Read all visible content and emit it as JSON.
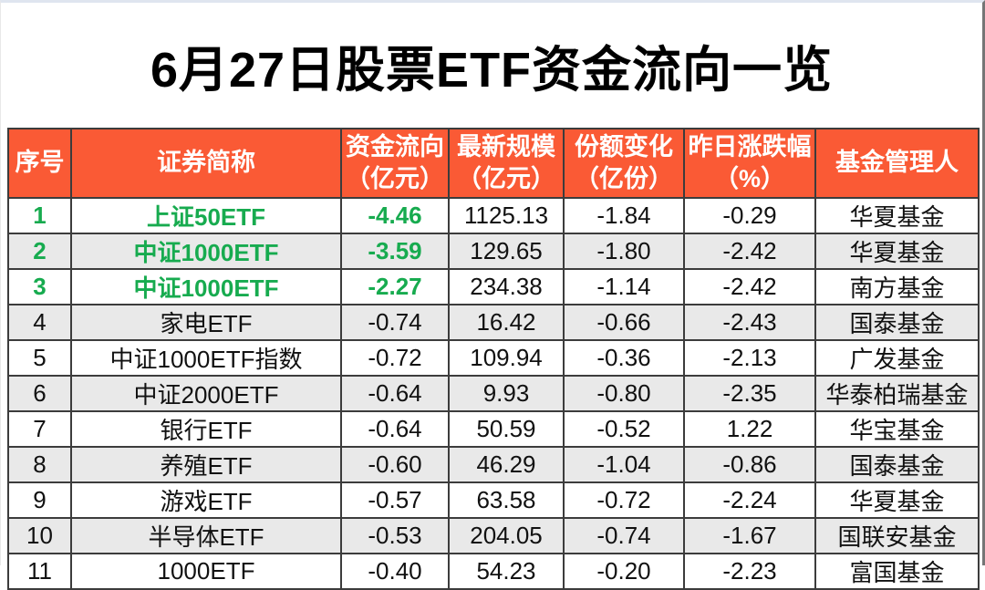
{
  "title": "6月27日股票ETF资金流向一览",
  "colors": {
    "header_bg": "#FA5A35",
    "header_text": "#FFFFFF",
    "highlight_green": "#17AB4F",
    "row_alt_bg": "#E9E9E9",
    "border": "#3C3C3C",
    "text": "#111111"
  },
  "table": {
    "columns": [
      {
        "id": "index",
        "label": "序号"
      },
      {
        "id": "name",
        "label": "证券简称"
      },
      {
        "id": "flow",
        "label": "资金流向\n（亿元）"
      },
      {
        "id": "scale",
        "label": "最新规模\n（亿元）"
      },
      {
        "id": "share-change",
        "label": "份额变化\n（亿份）"
      },
      {
        "id": "pct-change",
        "label": "昨日涨跌幅\n（%）"
      },
      {
        "id": "manager",
        "label": "基金管理人"
      }
    ],
    "green_row_count": 3,
    "green_col_count": 3,
    "rows": [
      {
        "cells": [
          "1",
          "上证50ETF",
          "-4.46",
          "1125.13",
          "-1.84",
          "-0.29",
          "华夏基金"
        ]
      },
      {
        "cells": [
          "2",
          "中证1000ETF",
          "-3.59",
          "129.65",
          "-1.80",
          "-2.42",
          "华夏基金"
        ]
      },
      {
        "cells": [
          "3",
          "中证1000ETF",
          "-2.27",
          "234.38",
          "-1.14",
          "-2.42",
          "南方基金"
        ]
      },
      {
        "cells": [
          "4",
          "家电ETF",
          "-0.74",
          "16.42",
          "-0.66",
          "-2.43",
          "国泰基金"
        ]
      },
      {
        "cells": [
          "5",
          "中证1000ETF指数",
          "-0.72",
          "109.94",
          "-0.36",
          "-2.13",
          "广发基金"
        ]
      },
      {
        "cells": [
          "6",
          "中证2000ETF",
          "-0.64",
          "9.93",
          "-0.80",
          "-2.35",
          "华泰柏瑞基金"
        ]
      },
      {
        "cells": [
          "7",
          "银行ETF",
          "-0.64",
          "50.59",
          "-0.52",
          "1.22",
          "华宝基金"
        ]
      },
      {
        "cells": [
          "8",
          "养殖ETF",
          "-0.60",
          "46.29",
          "-1.04",
          "-0.86",
          "国泰基金"
        ]
      },
      {
        "cells": [
          "9",
          "游戏ETF",
          "-0.57",
          "63.58",
          "-0.72",
          "-2.24",
          "华夏基金"
        ]
      },
      {
        "cells": [
          "10",
          "半导体ETF",
          "-0.53",
          "204.05",
          "-0.74",
          "-1.67",
          "国联安基金"
        ]
      },
      {
        "cells": [
          "11",
          "1000ETF",
          "-0.40",
          "54.23",
          "-0.20",
          "-2.23",
          "富国基金"
        ]
      }
    ]
  },
  "chart_data": {
    "type": "table",
    "title": "6月27日股票ETF资金流向一览",
    "columns": [
      "序号",
      "证券简称",
      "资金流向(亿元)",
      "最新规模(亿元)",
      "份额变化(亿份)",
      "昨日涨跌幅(%)",
      "基金管理人"
    ],
    "rows": [
      [
        1,
        "上证50ETF",
        -4.46,
        1125.13,
        -1.84,
        -0.29,
        "华夏基金"
      ],
      [
        2,
        "中证1000ETF",
        -3.59,
        129.65,
        -1.8,
        -2.42,
        "华夏基金"
      ],
      [
        3,
        "中证1000ETF",
        -2.27,
        234.38,
        -1.14,
        -2.42,
        "南方基金"
      ],
      [
        4,
        "家电ETF",
        -0.74,
        16.42,
        -0.66,
        -2.43,
        "国泰基金"
      ],
      [
        5,
        "中证1000ETF指数",
        -0.72,
        109.94,
        -0.36,
        -2.13,
        "广发基金"
      ],
      [
        6,
        "中证2000ETF",
        -0.64,
        9.93,
        -0.8,
        -2.35,
        "华泰柏瑞基金"
      ],
      [
        7,
        "银行ETF",
        -0.64,
        50.59,
        -0.52,
        1.22,
        "华宝基金"
      ],
      [
        8,
        "养殖ETF",
        -0.6,
        46.29,
        -1.04,
        -0.86,
        "国泰基金"
      ],
      [
        9,
        "游戏ETF",
        -0.57,
        63.58,
        -0.72,
        -2.24,
        "华夏基金"
      ],
      [
        10,
        "半导体ETF",
        -0.53,
        204.05,
        -0.74,
        -1.67,
        "国联安基金"
      ],
      [
        11,
        "1000ETF",
        -0.4,
        54.23,
        -0.2,
        -2.23,
        "富国基金"
      ]
    ],
    "layout_hints": {
      "header_fill": "#FA5A35",
      "alternating_row_fill": "#E9E9E9",
      "highlight": "rows 1-3 columns 1-3 shown in bold green (#17AB4F)"
    }
  }
}
